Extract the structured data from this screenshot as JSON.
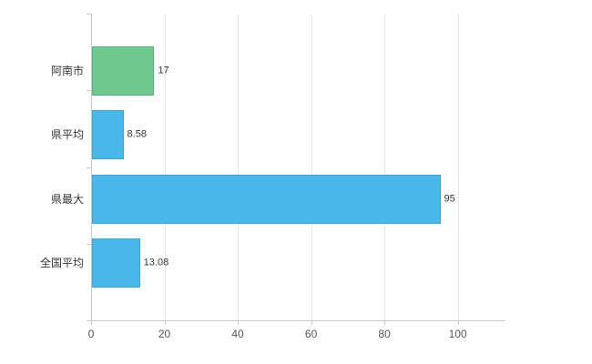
{
  "chart_data": {
    "type": "bar",
    "orientation": "horizontal",
    "title": "",
    "categories": [
      "阿南市",
      "県平均",
      "県最大",
      "全国平均"
    ],
    "values": [
      17,
      8.58,
      95,
      13.08
    ],
    "value_labels": [
      "17",
      "8.58",
      "95",
      "13.08"
    ],
    "x_ticks": [
      0,
      20,
      40,
      60,
      80,
      100
    ],
    "x_tick_labels": [
      "0",
      "20",
      "40",
      "60",
      "80",
      "100"
    ],
    "xlim": [
      0,
      113
    ],
    "grid": true,
    "legend": false,
    "bar_colors": [
      "#6dc98d",
      "#49b8e8",
      "#49b8e8",
      "#49b8e8"
    ],
    "bar_border_colors": [
      "#57b577",
      "#36a8dc",
      "#36a8dc",
      "#36a8dc"
    ],
    "colors": {
      "axis": "#c9c9c9",
      "grid": "#e8e8e8",
      "label": "#333333",
      "tick_label": "#555555",
      "background": "#ffffff"
    }
  }
}
